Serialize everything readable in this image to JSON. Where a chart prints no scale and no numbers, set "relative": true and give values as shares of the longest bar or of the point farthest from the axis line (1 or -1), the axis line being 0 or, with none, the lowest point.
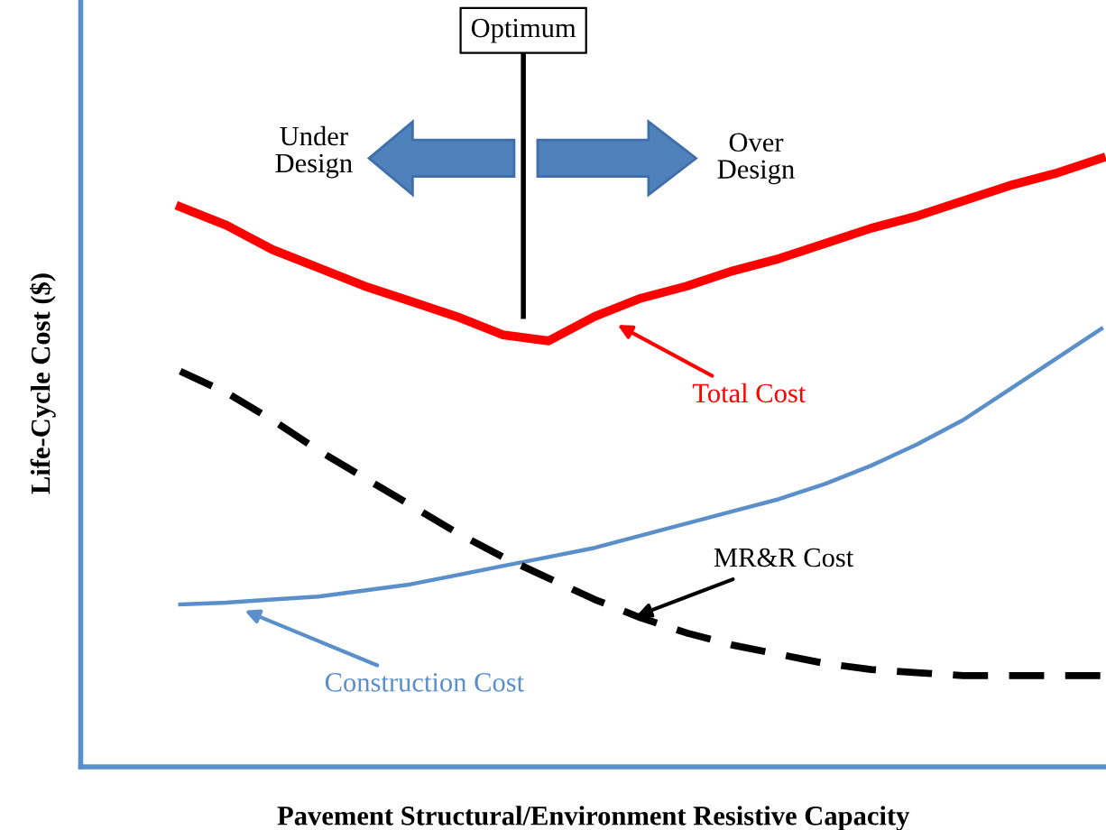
{
  "chart_data": {
    "type": "line",
    "relative": true,
    "xlabel": "Pavement Structural/Environment Resistive Capacity",
    "ylabel": "Life-Cycle Cost ($)",
    "categories": [
      null,
      null,
      null,
      null,
      null,
      null,
      null,
      null,
      null,
      null,
      null,
      null,
      null,
      null,
      null,
      null,
      null,
      null,
      null,
      null,
      null
    ],
    "series": [
      {
        "name": "Total Cost",
        "color": "#ff0000",
        "line_style": "solid",
        "values": [
          0.92,
          0.89,
          0.85,
          0.82,
          0.79,
          0.765,
          0.74,
          0.71,
          0.7,
          0.74,
          0.77,
          0.79,
          0.815,
          0.835,
          0.86,
          0.885,
          0.905,
          0.93,
          0.955,
          0.975,
          1.0
        ]
      },
      {
        "name": "Construction Cost",
        "color": "#5b8fc9",
        "line_style": "solid",
        "values": [
          0.267,
          0.27,
          0.275,
          0.28,
          0.29,
          0.3,
          0.315,
          0.33,
          0.345,
          0.36,
          0.38,
          0.4,
          0.42,
          0.44,
          0.465,
          0.495,
          0.53,
          0.57,
          0.62,
          0.67,
          0.72
        ]
      },
      {
        "name": "MR&R Cost",
        "color": "#000000",
        "line_style": "dashed",
        "values": [
          0.65,
          0.615,
          0.57,
          0.52,
          0.475,
          0.43,
          0.385,
          0.345,
          0.31,
          0.275,
          0.245,
          0.22,
          0.2,
          0.185,
          0.17,
          0.16,
          0.155,
          0.15,
          0.15,
          0.15,
          0.15
        ]
      }
    ],
    "annotations": [
      "Optimum",
      "Under\nDesign",
      "Over\nDesign"
    ],
    "legend": "center",
    "grid": false
  }
}
